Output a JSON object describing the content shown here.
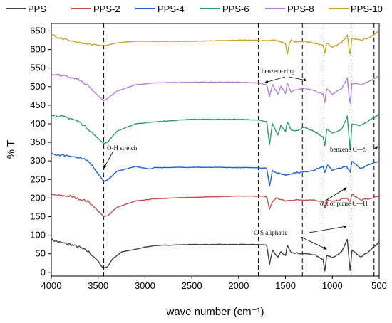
{
  "chart_data": {
    "type": "line",
    "xlabel": "wave number (cm⁻¹)",
    "ylabel": "% T",
    "xlim": [
      4000,
      500
    ],
    "ylim": [
      -10,
      670
    ],
    "x_ticks": [
      "4000",
      "3500",
      "3000",
      "2500",
      "2000",
      "1500",
      "1000",
      "500"
    ],
    "y_ticks": [
      "0",
      "50",
      "100",
      "150",
      "200",
      "250",
      "300",
      "350",
      "400",
      "450",
      "500",
      "550",
      "600",
      "650"
    ],
    "legend_position": "top",
    "grid": false,
    "series": [
      {
        "name": "PPS",
        "color": "#404040",
        "base": 60,
        "points": [
          [
            4000,
            88
          ],
          [
            3900,
            80
          ],
          [
            3800,
            75
          ],
          [
            3700,
            68
          ],
          [
            3600,
            55
          ],
          [
            3500,
            30
          ],
          [
            3450,
            12
          ],
          [
            3400,
            15
          ],
          [
            3350,
            35
          ],
          [
            3250,
            55
          ],
          [
            3100,
            62
          ],
          [
            3000,
            68
          ],
          [
            2900,
            72
          ],
          [
            2500,
            75
          ],
          [
            2000,
            75
          ],
          [
            1800,
            75
          ],
          [
            1700,
            73
          ],
          [
            1670,
            22
          ],
          [
            1640,
            60
          ],
          [
            1580,
            40
          ],
          [
            1550,
            55
          ],
          [
            1500,
            45
          ],
          [
            1480,
            72
          ],
          [
            1440,
            55
          ],
          [
            1400,
            52
          ],
          [
            1300,
            50
          ],
          [
            1200,
            48
          ],
          [
            1100,
            35
          ],
          [
            1080,
            5
          ],
          [
            1060,
            45
          ],
          [
            1000,
            40
          ],
          [
            900,
            55
          ],
          [
            840,
            88
          ],
          [
            820,
            30
          ],
          [
            810,
            5
          ],
          [
            790,
            60
          ],
          [
            700,
            40
          ],
          [
            600,
            58
          ],
          [
            500,
            82
          ]
        ]
      },
      {
        "name": "PPS-2",
        "color": "#c0504d",
        "base": 190,
        "points": [
          [
            4000,
            208
          ],
          [
            3800,
            205
          ],
          [
            3600,
            190
          ],
          [
            3500,
            165
          ],
          [
            3440,
            150
          ],
          [
            3400,
            152
          ],
          [
            3300,
            175
          ],
          [
            3100,
            192
          ],
          [
            2900,
            198
          ],
          [
            2500,
            202
          ],
          [
            2000,
            205
          ],
          [
            1800,
            205
          ],
          [
            1700,
            203
          ],
          [
            1670,
            170
          ],
          [
            1640,
            190
          ],
          [
            1600,
            200
          ],
          [
            1500,
            192
          ],
          [
            1400,
            195
          ],
          [
            1200,
            195
          ],
          [
            1100,
            190
          ],
          [
            1080,
            172
          ],
          [
            1050,
            195
          ],
          [
            1000,
            190
          ],
          [
            850,
            200
          ],
          [
            810,
            190
          ],
          [
            790,
            210
          ],
          [
            700,
            195
          ],
          [
            600,
            198
          ],
          [
            500,
            205
          ]
        ]
      },
      {
        "name": "PPS-4",
        "color": "#1f5fd1",
        "base": 285,
        "points": [
          [
            4000,
            318
          ],
          [
            3800,
            314
          ],
          [
            3600,
            300
          ],
          [
            3500,
            265
          ],
          [
            3440,
            245
          ],
          [
            3400,
            248
          ],
          [
            3300,
            272
          ],
          [
            3100,
            285
          ],
          [
            2950,
            278
          ],
          [
            2900,
            282
          ],
          [
            2500,
            283
          ],
          [
            2000,
            282
          ],
          [
            1800,
            282
          ],
          [
            1700,
            280
          ],
          [
            1670,
            232
          ],
          [
            1640,
            275
          ],
          [
            1600,
            268
          ],
          [
            1500,
            262
          ],
          [
            1400,
            268
          ],
          [
            1300,
            270
          ],
          [
            1200,
            275
          ],
          [
            1100,
            285
          ],
          [
            1080,
            268
          ],
          [
            1050,
            290
          ],
          [
            1000,
            275
          ],
          [
            850,
            285
          ],
          [
            810,
            270
          ],
          [
            790,
            300
          ],
          [
            700,
            280
          ],
          [
            600,
            290
          ],
          [
            500,
            300
          ]
        ]
      },
      {
        "name": "PPS-6",
        "color": "#2e9b6b",
        "base": 400,
        "points": [
          [
            4000,
            425
          ],
          [
            3800,
            415
          ],
          [
            3700,
            405
          ],
          [
            3600,
            385
          ],
          [
            3500,
            360
          ],
          [
            3440,
            347
          ],
          [
            3400,
            350
          ],
          [
            3300,
            380
          ],
          [
            3100,
            400
          ],
          [
            2900,
            405
          ],
          [
            2500,
            412
          ],
          [
            2000,
            412
          ],
          [
            1800,
            410
          ],
          [
            1700,
            405
          ],
          [
            1670,
            343
          ],
          [
            1640,
            400
          ],
          [
            1580,
            370
          ],
          [
            1550,
            395
          ],
          [
            1500,
            380
          ],
          [
            1480,
            405
          ],
          [
            1440,
            385
          ],
          [
            1400,
            380
          ],
          [
            1300,
            390
          ],
          [
            1200,
            380
          ],
          [
            1100,
            365
          ],
          [
            1080,
            340
          ],
          [
            1060,
            385
          ],
          [
            1000,
            375
          ],
          [
            900,
            385
          ],
          [
            840,
            420
          ],
          [
            820,
            360
          ],
          [
            810,
            330
          ],
          [
            790,
            400
          ],
          [
            700,
            395
          ],
          [
            600,
            410
          ],
          [
            500,
            425
          ]
        ]
      },
      {
        "name": "PPS-8",
        "color": "#b07fd8",
        "base": 510,
        "points": [
          [
            4000,
            535
          ],
          [
            3800,
            525
          ],
          [
            3700,
            518
          ],
          [
            3600,
            500
          ],
          [
            3500,
            475
          ],
          [
            3440,
            462
          ],
          [
            3400,
            468
          ],
          [
            3300,
            488
          ],
          [
            3100,
            505
          ],
          [
            2900,
            510
          ],
          [
            2500,
            512
          ],
          [
            2000,
            512
          ],
          [
            1800,
            510
          ],
          [
            1700,
            505
          ],
          [
            1670,
            472
          ],
          [
            1640,
            505
          ],
          [
            1580,
            480
          ],
          [
            1550,
            500
          ],
          [
            1500,
            482
          ],
          [
            1480,
            510
          ],
          [
            1440,
            485
          ],
          [
            1400,
            490
          ],
          [
            1300,
            495
          ],
          [
            1200,
            490
          ],
          [
            1100,
            480
          ],
          [
            1080,
            458
          ],
          [
            1060,
            495
          ],
          [
            1000,
            480
          ],
          [
            900,
            495
          ],
          [
            840,
            525
          ],
          [
            820,
            470
          ],
          [
            810,
            455
          ],
          [
            790,
            510
          ],
          [
            700,
            505
          ],
          [
            600,
            515
          ],
          [
            500,
            530
          ]
        ]
      },
      {
        "name": "PPS-10",
        "color": "#c9a227",
        "base": 620,
        "points": [
          [
            4000,
            640
          ],
          [
            3900,
            630
          ],
          [
            3800,
            622
          ],
          [
            3700,
            620
          ],
          [
            3600,
            615
          ],
          [
            3500,
            612
          ],
          [
            3440,
            610
          ],
          [
            3400,
            612
          ],
          [
            3300,
            618
          ],
          [
            3100,
            622
          ],
          [
            2900,
            622
          ],
          [
            2500,
            622
          ],
          [
            2000,
            625
          ],
          [
            1800,
            625
          ],
          [
            1700,
            623
          ],
          [
            1600,
            625
          ],
          [
            1500,
            615
          ],
          [
            1480,
            588
          ],
          [
            1460,
            615
          ],
          [
            1440,
            625
          ],
          [
            1400,
            620
          ],
          [
            1300,
            622
          ],
          [
            1200,
            618
          ],
          [
            1100,
            612
          ],
          [
            1080,
            590
          ],
          [
            1060,
            618
          ],
          [
            1000,
            605
          ],
          [
            900,
            620
          ],
          [
            840,
            638
          ],
          [
            820,
            600
          ],
          [
            810,
            588
          ],
          [
            790,
            630
          ],
          [
            700,
            625
          ],
          [
            600,
            632
          ],
          [
            500,
            650
          ]
        ]
      }
    ],
    "dashed_lines_x": [
      3440,
      1790,
      1320,
      1090,
      800,
      555
    ],
    "annotations": [
      {
        "text": "O-H stretch"
      },
      {
        "text": "benzene ring"
      },
      {
        "text": "benzene C—S"
      },
      {
        "text": "out of plane C—H"
      },
      {
        "text": "C-S aliphatic"
      }
    ]
  }
}
